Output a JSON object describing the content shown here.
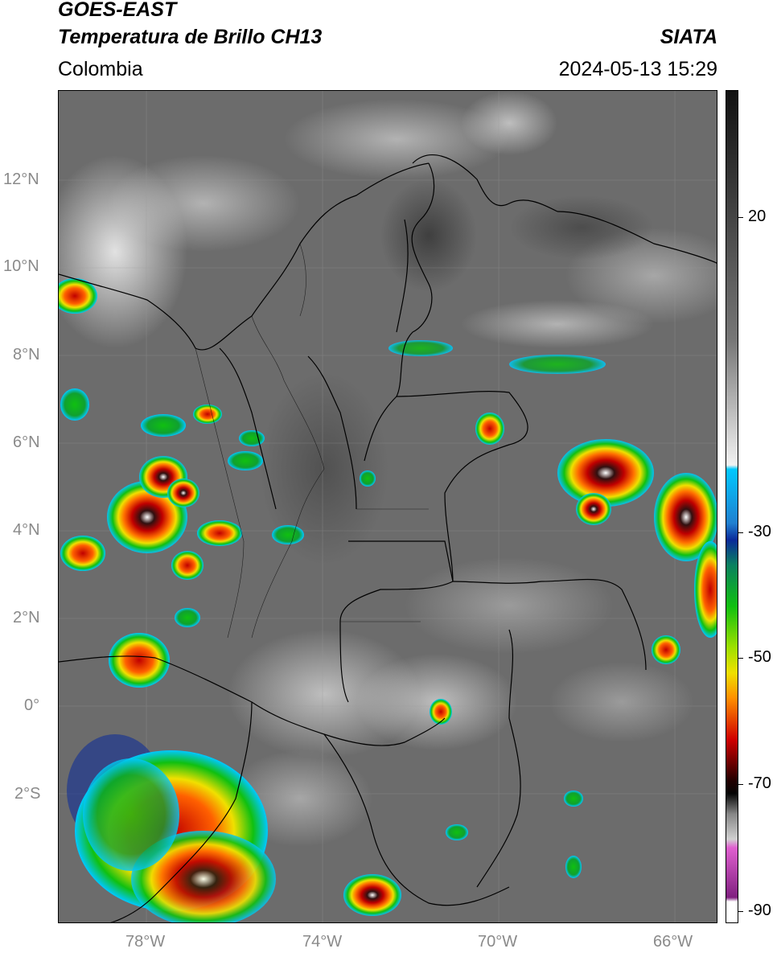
{
  "header": {
    "satellite": "GOES-EAST",
    "product": "Temperatura de Brillo CH13",
    "region": "Colombia",
    "agency": "SIATA",
    "timestamp": "2024-05-13 15:29"
  },
  "map": {
    "lat_ticks": [
      "12°N",
      "10°N",
      "8°N",
      "6°N",
      "4°N",
      "2°N",
      "0°",
      "2°S"
    ],
    "lon_ticks": [
      "78°W",
      "74°W",
      "70°W",
      "66°W"
    ],
    "extent": {
      "lon_min": -80,
      "lon_max": -65,
      "lat_min": -4.9,
      "lat_max": 14
    }
  },
  "colorbar": {
    "labels": [
      "20",
      "-30",
      "-50",
      "-70",
      "-90"
    ],
    "unit_scale": "brightness temperature",
    "colors": {
      "warm_gray_top": "#111111",
      "cold_cyan": "#00c8ff",
      "blue": "#0a2a9a",
      "green": "#10c010",
      "yellow": "#f0e000",
      "red": "#d00000",
      "dark": "#200000",
      "magenta": "#e060d0",
      "purple": "#802080"
    }
  }
}
